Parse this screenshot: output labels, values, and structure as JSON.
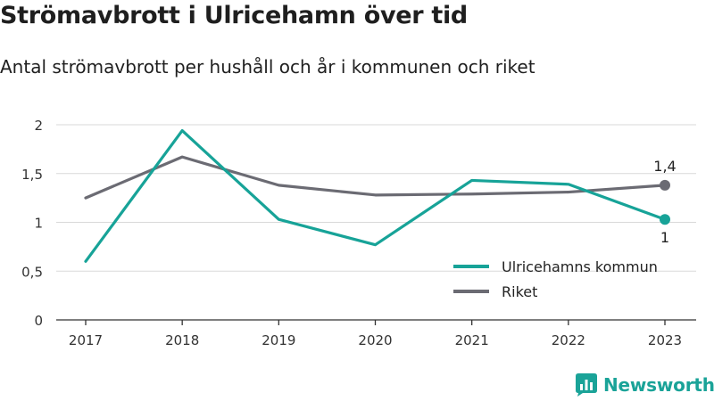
{
  "title": "Strömavbrott i Ulricehamn över tid",
  "subtitle": "Antal strömavbrott per hushåll och år i kommunen och riket",
  "brand": "Newsworthy",
  "colors": {
    "kommun": "#17a398",
    "riket": "#6b6b73",
    "grid": "#d9d9d9",
    "axis": "#333333",
    "brand": "#1aa398"
  },
  "chart_data": {
    "type": "line",
    "categories": [
      "2017",
      "2018",
      "2019",
      "2020",
      "2021",
      "2022",
      "2023"
    ],
    "yticks": [
      "0",
      "0,5",
      "1",
      "1,5",
      "2"
    ],
    "ylim": [
      0,
      2
    ],
    "grid": true,
    "legend_position": "bottom-right",
    "series": [
      {
        "name": "Ulricehamns kommun",
        "values": [
          0.6,
          1.94,
          1.03,
          0.77,
          1.43,
          1.39,
          1.03
        ],
        "end_label": "1"
      },
      {
        "name": "Riket",
        "values": [
          1.25,
          1.67,
          1.38,
          1.28,
          1.29,
          1.31,
          1.38
        ],
        "end_label": "1,4"
      }
    ]
  }
}
